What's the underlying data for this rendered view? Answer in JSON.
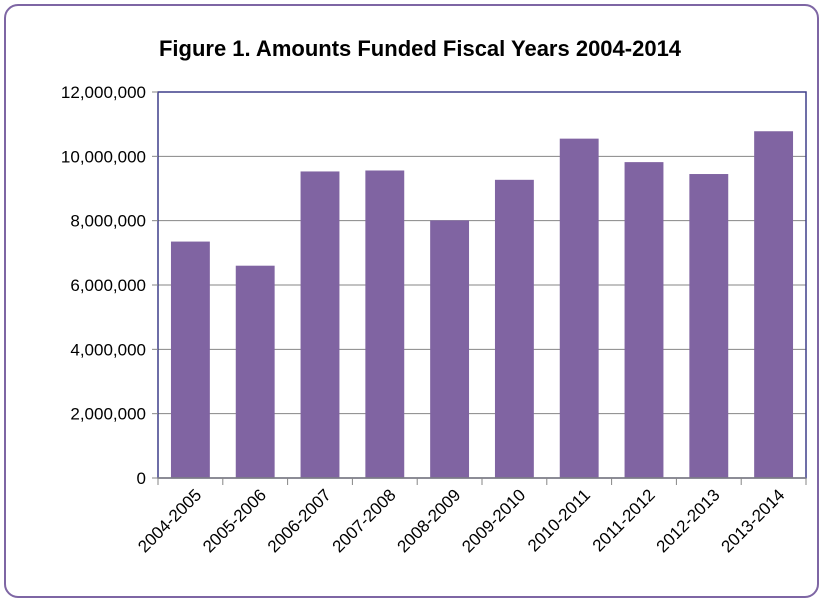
{
  "chart_data": {
    "type": "bar",
    "title": "Figure 1. Amounts Funded Fiscal Years 2004-2014",
    "xlabel": "",
    "ylabel": "",
    "categories": [
      "2004-2005",
      "2005-2006",
      "2006-2007",
      "2007-2008",
      "2008-2009",
      "2009-2010",
      "2010-2011",
      "2011-2012",
      "2012-2013",
      "2013-2014"
    ],
    "values": [
      7350000,
      6600000,
      9530000,
      9560000,
      8010000,
      9270000,
      10550000,
      9820000,
      9450000,
      10780000
    ],
    "ylim": [
      0,
      12000000
    ],
    "yticks": [
      0,
      2000000,
      4000000,
      6000000,
      8000000,
      10000000,
      12000000
    ],
    "ytick_labels": [
      "0",
      "2,000,000",
      "4,000,000",
      "6,000,000",
      "8,000,000",
      "10,000,000",
      "12,000,000"
    ],
    "grid": true,
    "legend": "none",
    "colors": {
      "bar": "#8064a2",
      "frame": "#7e66a4",
      "plot_border": "#3f3f8a",
      "grid": "#868686",
      "axis": "#868686"
    }
  }
}
